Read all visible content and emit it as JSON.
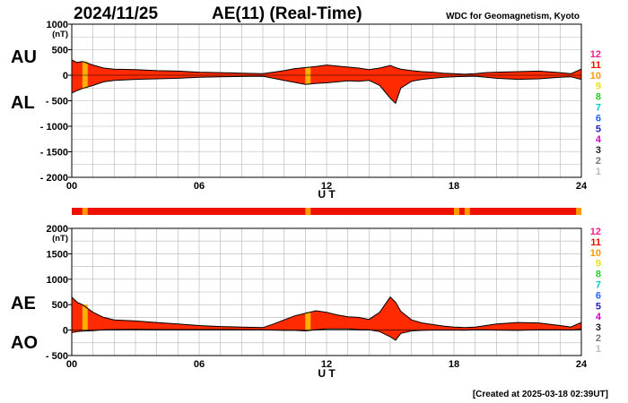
{
  "header": {
    "date": "2024/11/25",
    "title": "AE(11) (Real-Time)",
    "source": "WDC for Geomagnetism, Kyoto"
  },
  "footer": {
    "created": "[Created at 2025-03-18 02:39UT]"
  },
  "colors": {
    "fill": "#ff2a00",
    "outline": "#000000",
    "grid": "#b4b4b4",
    "quality_highlight": "#ffb000"
  },
  "quality_legend": [
    {
      "label": "12",
      "color": "#ff1a8c"
    },
    {
      "label": "11",
      "color": "#ee1100"
    },
    {
      "label": "10",
      "color": "#ff9900"
    },
    {
      "label": "9",
      "color": "#e6e600"
    },
    {
      "label": "8",
      "color": "#22cc22"
    },
    {
      "label": "7",
      "color": "#00cccc"
    },
    {
      "label": "6",
      "color": "#1e64ff"
    },
    {
      "label": "5",
      "color": "#2222bb"
    },
    {
      "label": "4",
      "color": "#cc00cc"
    },
    {
      "label": "3",
      "color": "#222222"
    },
    {
      "label": "2",
      "color": "#777777"
    },
    {
      "label": "1",
      "color": "#bbbbbb"
    }
  ],
  "chart_data": [
    {
      "type": "area",
      "unit": "(nT)",
      "left_labels": [
        "AU",
        "AL"
      ],
      "xlabel": "U T",
      "xlim": [
        0,
        24
      ],
      "ylim": [
        -2000,
        1000
      ],
      "xticks": [
        {
          "value": 0,
          "label": "00"
        },
        {
          "value": 6,
          "label": "06"
        },
        {
          "value": 12,
          "label": "12"
        },
        {
          "value": 18,
          "label": "18"
        },
        {
          "value": 24,
          "label": "24"
        }
      ],
      "yticks": [
        {
          "value": 1000,
          "label": "1000"
        },
        {
          "value": 500,
          "label": "500"
        },
        {
          "value": 0,
          "label": "0"
        },
        {
          "value": -500,
          "label": "- 500"
        },
        {
          "value": -1000,
          "label": "- 1000"
        },
        {
          "value": -1500,
          "label": "- 1500"
        },
        {
          "value": -2000,
          "label": "- 2000"
        }
      ],
      "series": [
        {
          "key": "AU",
          "x": [
            0,
            0.25,
            0.5,
            1,
            1.5,
            2,
            3,
            4,
            5,
            6,
            7,
            8,
            9,
            9.5,
            10,
            10.5,
            11,
            11.5,
            12,
            12.5,
            13,
            13.5,
            14,
            14.5,
            15,
            15.25,
            15.5,
            16,
            16.5,
            17,
            17.5,
            18,
            18.5,
            19,
            19.5,
            20,
            21,
            22,
            23,
            23.5,
            24
          ],
          "values": [
            300,
            250,
            270,
            200,
            140,
            120,
            110,
            90,
            80,
            60,
            50,
            40,
            30,
            60,
            90,
            130,
            150,
            170,
            200,
            180,
            160,
            140,
            110,
            140,
            190,
            150,
            120,
            90,
            70,
            60,
            40,
            30,
            20,
            30,
            50,
            60,
            70,
            80,
            50,
            30,
            120
          ]
        },
        {
          "key": "AL",
          "x": [
            0,
            0.25,
            0.5,
            1,
            1.5,
            2,
            3,
            4,
            5,
            6,
            7,
            8,
            9,
            9.5,
            10,
            10.5,
            11,
            11.5,
            12,
            12.5,
            13,
            13.5,
            14,
            14.5,
            15,
            15.25,
            15.5,
            16,
            16.5,
            17,
            17.5,
            18,
            18.5,
            19,
            19.5,
            20,
            21,
            22,
            23,
            23.5,
            24
          ],
          "values": [
            -350,
            -300,
            -260,
            -200,
            -130,
            -100,
            -80,
            -70,
            -60,
            -40,
            -30,
            -25,
            -20,
            -60,
            -100,
            -140,
            -180,
            -160,
            -150,
            -130,
            -110,
            -120,
            -100,
            -200,
            -450,
            -550,
            -250,
            -120,
            -80,
            -60,
            -40,
            -30,
            -25,
            -20,
            -40,
            -60,
            -80,
            -70,
            -40,
            -30,
            -80
          ]
        }
      ],
      "highlight_bands": [
        [
          0.5,
          0.75
        ],
        [
          11.0,
          11.25
        ]
      ]
    },
    {
      "type": "area",
      "unit": "(nT)",
      "left_labels": [
        "AE",
        "AO"
      ],
      "xlabel": "U T",
      "xlim": [
        0,
        24
      ],
      "ylim": [
        -500,
        2000
      ],
      "xticks": [
        {
          "value": 0,
          "label": "00"
        },
        {
          "value": 6,
          "label": "06"
        },
        {
          "value": 12,
          "label": "12"
        },
        {
          "value": 18,
          "label": "18"
        },
        {
          "value": 24,
          "label": "24"
        }
      ],
      "yticks": [
        {
          "value": 2000,
          "label": "2000"
        },
        {
          "value": 1500,
          "label": "1500"
        },
        {
          "value": 1000,
          "label": "1000"
        },
        {
          "value": 500,
          "label": "500"
        },
        {
          "value": 0,
          "label": "0"
        },
        {
          "value": -500,
          "label": "- 500"
        }
      ],
      "series": [
        {
          "key": "AE",
          "x": [
            0,
            0.25,
            0.5,
            1,
            1.5,
            2,
            3,
            4,
            5,
            6,
            7,
            8,
            9,
            9.5,
            10,
            10.5,
            11,
            11.5,
            12,
            12.5,
            13,
            13.5,
            14,
            14.5,
            15,
            15.25,
            15.5,
            16,
            16.5,
            17,
            17.5,
            18,
            18.5,
            19,
            19.5,
            20,
            21,
            22,
            23,
            23.5,
            24
          ],
          "values": [
            650,
            550,
            500,
            350,
            250,
            200,
            180,
            150,
            120,
            90,
            70,
            60,
            50,
            120,
            200,
            280,
            330,
            380,
            350,
            300,
            260,
            250,
            210,
            350,
            650,
            550,
            370,
            200,
            140,
            110,
            80,
            60,
            50,
            60,
            90,
            120,
            150,
            140,
            90,
            60,
            150
          ]
        },
        {
          "key": "AO",
          "x": [
            0,
            0.25,
            0.5,
            1,
            1.5,
            2,
            3,
            4,
            5,
            6,
            7,
            8,
            9,
            9.5,
            10,
            10.5,
            11,
            11.5,
            12,
            12.5,
            13,
            13.5,
            14,
            14.5,
            15,
            15.25,
            15.5,
            16,
            16.5,
            17,
            17.5,
            18,
            18.5,
            19,
            19.5,
            20,
            21,
            22,
            23,
            23.5,
            24
          ],
          "values": [
            -50,
            -30,
            -20,
            -10,
            5,
            10,
            15,
            10,
            10,
            10,
            10,
            8,
            5,
            0,
            -5,
            -5,
            -15,
            5,
            25,
            25,
            25,
            10,
            5,
            -30,
            -130,
            -200,
            -65,
            -15,
            -5,
            0,
            0,
            0,
            -3,
            5,
            5,
            0,
            -5,
            5,
            5,
            0,
            20
          ]
        }
      ],
      "highlight_bands": [
        [
          0.5,
          0.75
        ],
        [
          11.0,
          11.25
        ]
      ]
    }
  ],
  "data_quality_bar": {
    "base_color": "#ee1100",
    "segments": [
      {
        "from": 0.5,
        "to": 0.75,
        "color": "#ff9900"
      },
      {
        "from": 11.0,
        "to": 11.25,
        "color": "#ff9900"
      },
      {
        "from": 18.0,
        "to": 18.25,
        "color": "#ff9900"
      },
      {
        "from": 18.5,
        "to": 18.75,
        "color": "#ff9900"
      },
      {
        "from": 23.75,
        "to": 24.0,
        "color": "#ff9900"
      }
    ]
  }
}
